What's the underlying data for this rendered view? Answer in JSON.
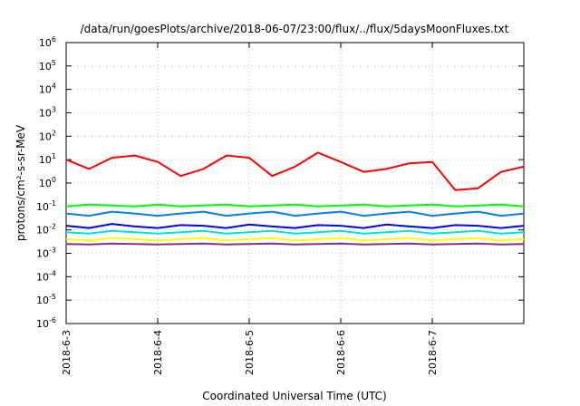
{
  "chart_data": {
    "type": "line",
    "title": "/data/run/goesPlots/archive/2018-06-07/23:00/flux/../flux/5daysMoonFluxes.txt",
    "xlabel": "Coordinated Universal Time (UTC)",
    "ylabel": "protons/cm²-s-sr-MeV",
    "xlim": [
      "2018-06-03",
      "2018-06-08"
    ],
    "ylim": [
      1e-06,
      1000000.0
    ],
    "yscale": "log",
    "grid": true,
    "x_ticks": [
      "2018-6-3",
      "2018-6-4",
      "2018-6-5",
      "2018-6-6",
      "2018-6-7"
    ],
    "y_ticks": [
      {
        "base": "10",
        "exp": "-6"
      },
      {
        "base": "10",
        "exp": "-5"
      },
      {
        "base": "10",
        "exp": "-4"
      },
      {
        "base": "10",
        "exp": "-3"
      },
      {
        "base": "10",
        "exp": "-2"
      },
      {
        "base": "10",
        "exp": "-1"
      },
      {
        "base": "10",
        "exp": "0"
      },
      {
        "base": "10",
        "exp": "1"
      },
      {
        "base": "10",
        "exp": "2"
      },
      {
        "base": "10",
        "exp": "3"
      },
      {
        "base": "10",
        "exp": "4"
      },
      {
        "base": "10",
        "exp": "5"
      },
      {
        "base": "10",
        "exp": "6"
      }
    ],
    "x_days": [
      0,
      0.25,
      0.5,
      0.75,
      1.0,
      1.25,
      1.5,
      1.75,
      2.0,
      2.25,
      2.5,
      2.75,
      3.0,
      3.25,
      3.5,
      3.75,
      4.0,
      4.25,
      4.5,
      4.75,
      5.0
    ],
    "series": [
      {
        "color": "#ff0000",
        "values": [
          10,
          4,
          12,
          15,
          8,
          2,
          4,
          15,
          12,
          2,
          5,
          20,
          8,
          3,
          4,
          7,
          8,
          0.5,
          0.6,
          3,
          5
        ]
      },
      {
        "color": "#00ff00",
        "values": [
          0.1,
          0.12,
          0.11,
          0.1,
          0.12,
          0.1,
          0.11,
          0.12,
          0.1,
          0.11,
          0.12,
          0.1,
          0.11,
          0.12,
          0.1,
          0.11,
          0.12,
          0.1,
          0.11,
          0.12,
          0.1
        ]
      },
      {
        "color": "#0080ff",
        "values": [
          0.05,
          0.04,
          0.06,
          0.05,
          0.04,
          0.05,
          0.06,
          0.04,
          0.05,
          0.06,
          0.04,
          0.05,
          0.06,
          0.04,
          0.05,
          0.06,
          0.04,
          0.05,
          0.06,
          0.04,
          0.05
        ]
      },
      {
        "color": "#0000ff",
        "values": [
          0.015,
          0.012,
          0.018,
          0.014,
          0.012,
          0.016,
          0.015,
          0.012,
          0.017,
          0.014,
          0.012,
          0.016,
          0.015,
          0.012,
          0.017,
          0.014,
          0.012,
          0.016,
          0.015,
          0.012,
          0.015
        ]
      },
      {
        "color": "#00e0e0",
        "values": [
          0.008,
          0.007,
          0.009,
          0.008,
          0.007,
          0.008,
          0.009,
          0.007,
          0.008,
          0.009,
          0.007,
          0.008,
          0.009,
          0.007,
          0.008,
          0.009,
          0.007,
          0.008,
          0.009,
          0.007,
          0.008
        ]
      },
      {
        "color": "#ffff00",
        "values": [
          0.004,
          0.0035,
          0.0045,
          0.004,
          0.0035,
          0.004,
          0.0045,
          0.0035,
          0.004,
          0.0045,
          0.0035,
          0.004,
          0.0045,
          0.0035,
          0.004,
          0.0045,
          0.0035,
          0.004,
          0.0045,
          0.0035,
          0.004
        ]
      },
      {
        "color": "#883080",
        "values": [
          0.0025,
          0.0024,
          0.0026,
          0.0025,
          0.0024,
          0.0025,
          0.0026,
          0.0024,
          0.0025,
          0.0026,
          0.0024,
          0.0025,
          0.0026,
          0.0024,
          0.0025,
          0.0026,
          0.0024,
          0.0025,
          0.0026,
          0.0024,
          0.0025
        ]
      }
    ]
  }
}
